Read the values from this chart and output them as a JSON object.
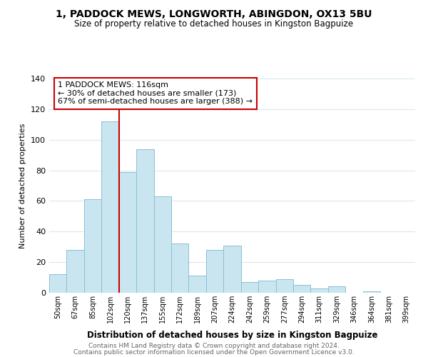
{
  "title1": "1, PADDOCK MEWS, LONGWORTH, ABINGDON, OX13 5BU",
  "title2": "Size of property relative to detached houses in Kingston Bagpuize",
  "xlabel": "Distribution of detached houses by size in Kingston Bagpuize",
  "ylabel": "Number of detached properties",
  "bin_labels": [
    "50sqm",
    "67sqm",
    "85sqm",
    "102sqm",
    "120sqm",
    "137sqm",
    "155sqm",
    "172sqm",
    "189sqm",
    "207sqm",
    "224sqm",
    "242sqm",
    "259sqm",
    "277sqm",
    "294sqm",
    "311sqm",
    "329sqm",
    "346sqm",
    "364sqm",
    "381sqm",
    "399sqm"
  ],
  "bar_heights": [
    12,
    28,
    61,
    112,
    79,
    94,
    63,
    32,
    11,
    28,
    31,
    7,
    8,
    9,
    5,
    3,
    4,
    0,
    1,
    0,
    0
  ],
  "bar_color": "#c9e6f0",
  "bar_edge_color": "#8bbfd4",
  "vline_x": 4,
  "vline_color": "#cc0000",
  "ylim": [
    0,
    140
  ],
  "yticks": [
    0,
    20,
    40,
    60,
    80,
    100,
    120,
    140
  ],
  "annotation_text": "1 PADDOCK MEWS: 116sqm\n← 30% of detached houses are smaller (173)\n67% of semi-detached houses are larger (388) →",
  "annotation_box_color": "#ffffff",
  "annotation_box_edge": "#cc0000",
  "footer1": "Contains HM Land Registry data © Crown copyright and database right 2024.",
  "footer2": "Contains public sector information licensed under the Open Government Licence v3.0.",
  "background_color": "#ffffff",
  "grid_color": "#d8e8f0"
}
